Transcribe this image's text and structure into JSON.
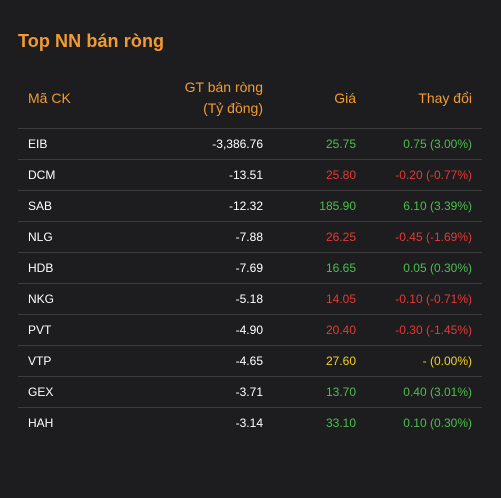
{
  "title": "Top NN bán ròng",
  "headers": {
    "code": "Mã CK",
    "value_line1": "GT bán ròng",
    "value_line2": "(Tỷ đồng)",
    "price": "Giá",
    "change": "Thay đổi"
  },
  "colors": {
    "up": "#4cbf4c",
    "down": "#e53935",
    "reference": "#f5d020",
    "accent": "#f29b33"
  },
  "rows": [
    {
      "code": "EIB",
      "value": "-3,386.76",
      "price": "25.75",
      "change": "0.75 (3.00%)",
      "trend": "up"
    },
    {
      "code": "DCM",
      "value": "-13.51",
      "price": "25.80",
      "change": "-0.20 (-0.77%)",
      "trend": "down"
    },
    {
      "code": "SAB",
      "value": "-12.32",
      "price": "185.90",
      "change": "6.10 (3.39%)",
      "trend": "up"
    },
    {
      "code": "NLG",
      "value": "-7.88",
      "price": "26.25",
      "change": "-0.45 (-1.69%)",
      "trend": "down"
    },
    {
      "code": "HDB",
      "value": "-7.69",
      "price": "16.65",
      "change": "0.05 (0.30%)",
      "trend": "up"
    },
    {
      "code": "NKG",
      "value": "-5.18",
      "price": "14.05",
      "change": "-0.10 (-0.71%)",
      "trend": "down"
    },
    {
      "code": "PVT",
      "value": "-4.90",
      "price": "20.40",
      "change": "-0.30 (-1.45%)",
      "trend": "down"
    },
    {
      "code": "VTP",
      "value": "-4.65",
      "price": "27.60",
      "change": "- (0.00%)",
      "trend": "ref"
    },
    {
      "code": "GEX",
      "value": "-3.71",
      "price": "13.70",
      "change": "0.40 (3.01%)",
      "trend": "up"
    },
    {
      "code": "HAH",
      "value": "-3.14",
      "price": "33.10",
      "change": "0.10 (0.30%)",
      "trend": "up"
    }
  ]
}
